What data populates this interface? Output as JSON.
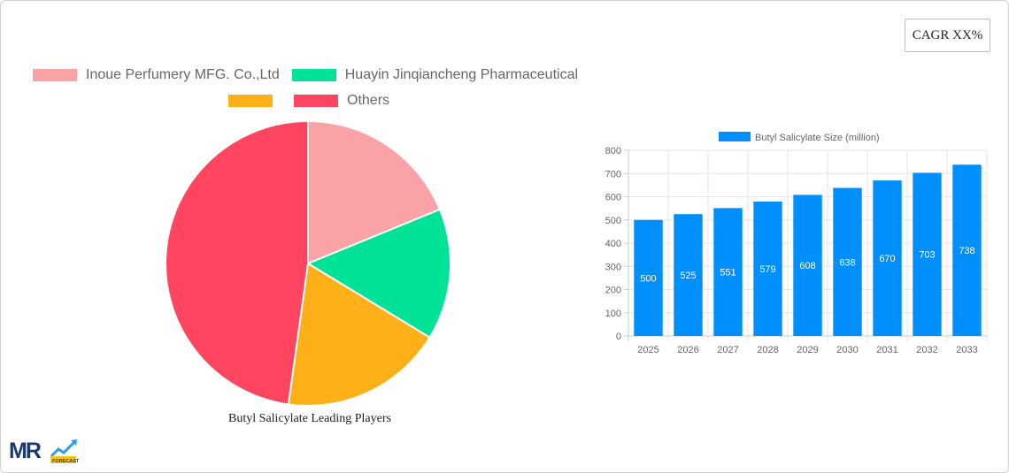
{
  "badge": {
    "cagr_label": "CAGR XX%"
  },
  "pie_chart": {
    "title": "Butyl Salicylate Leading Players",
    "legend": [
      {
        "label": "Inoue Perfumery MFG. Co.,Ltd",
        "color": "#f9a3a6"
      },
      {
        "label": "Huayin Jinqiancheng Pharmaceutical",
        "color": "#00e396"
      },
      {
        "label": "",
        "color": "#feb019"
      },
      {
        "label": "Others",
        "color": "#ff4560"
      }
    ]
  },
  "bar_chart": {
    "legend_label": "Butyl Salicylate Size (million)",
    "color": "#008ffb"
  },
  "logo": {
    "text": "MR",
    "sub": "FORECAST"
  },
  "chart_data": [
    {
      "type": "pie",
      "title": "Butyl Salicylate Leading Players",
      "categories": [
        "Inoue Perfumery MFG. Co.,Ltd",
        "Huayin Jinqiancheng Pharmaceutical",
        "",
        "Others"
      ],
      "values": [
        18.8,
        14.9,
        18.5,
        47.8
      ],
      "colors": [
        "#f9a3a6",
        "#00e396",
        "#feb019",
        "#ff4560"
      ],
      "legend_position": "top"
    },
    {
      "type": "bar",
      "title": "",
      "categories": [
        "2025",
        "2026",
        "2027",
        "2028",
        "2029",
        "2030",
        "2031",
        "2032",
        "2033"
      ],
      "series": [
        {
          "name": "Butyl Salicylate Size (million)",
          "values": [
            500,
            525,
            551,
            579,
            608,
            638,
            670,
            703,
            738
          ]
        }
      ],
      "xlabel": "",
      "ylabel": "",
      "ylim": [
        0,
        800
      ],
      "yticks": [
        0,
        100,
        200,
        300,
        400,
        500,
        600,
        700,
        800
      ],
      "grid": true,
      "legend_position": "top",
      "data_labels": true
    }
  ]
}
